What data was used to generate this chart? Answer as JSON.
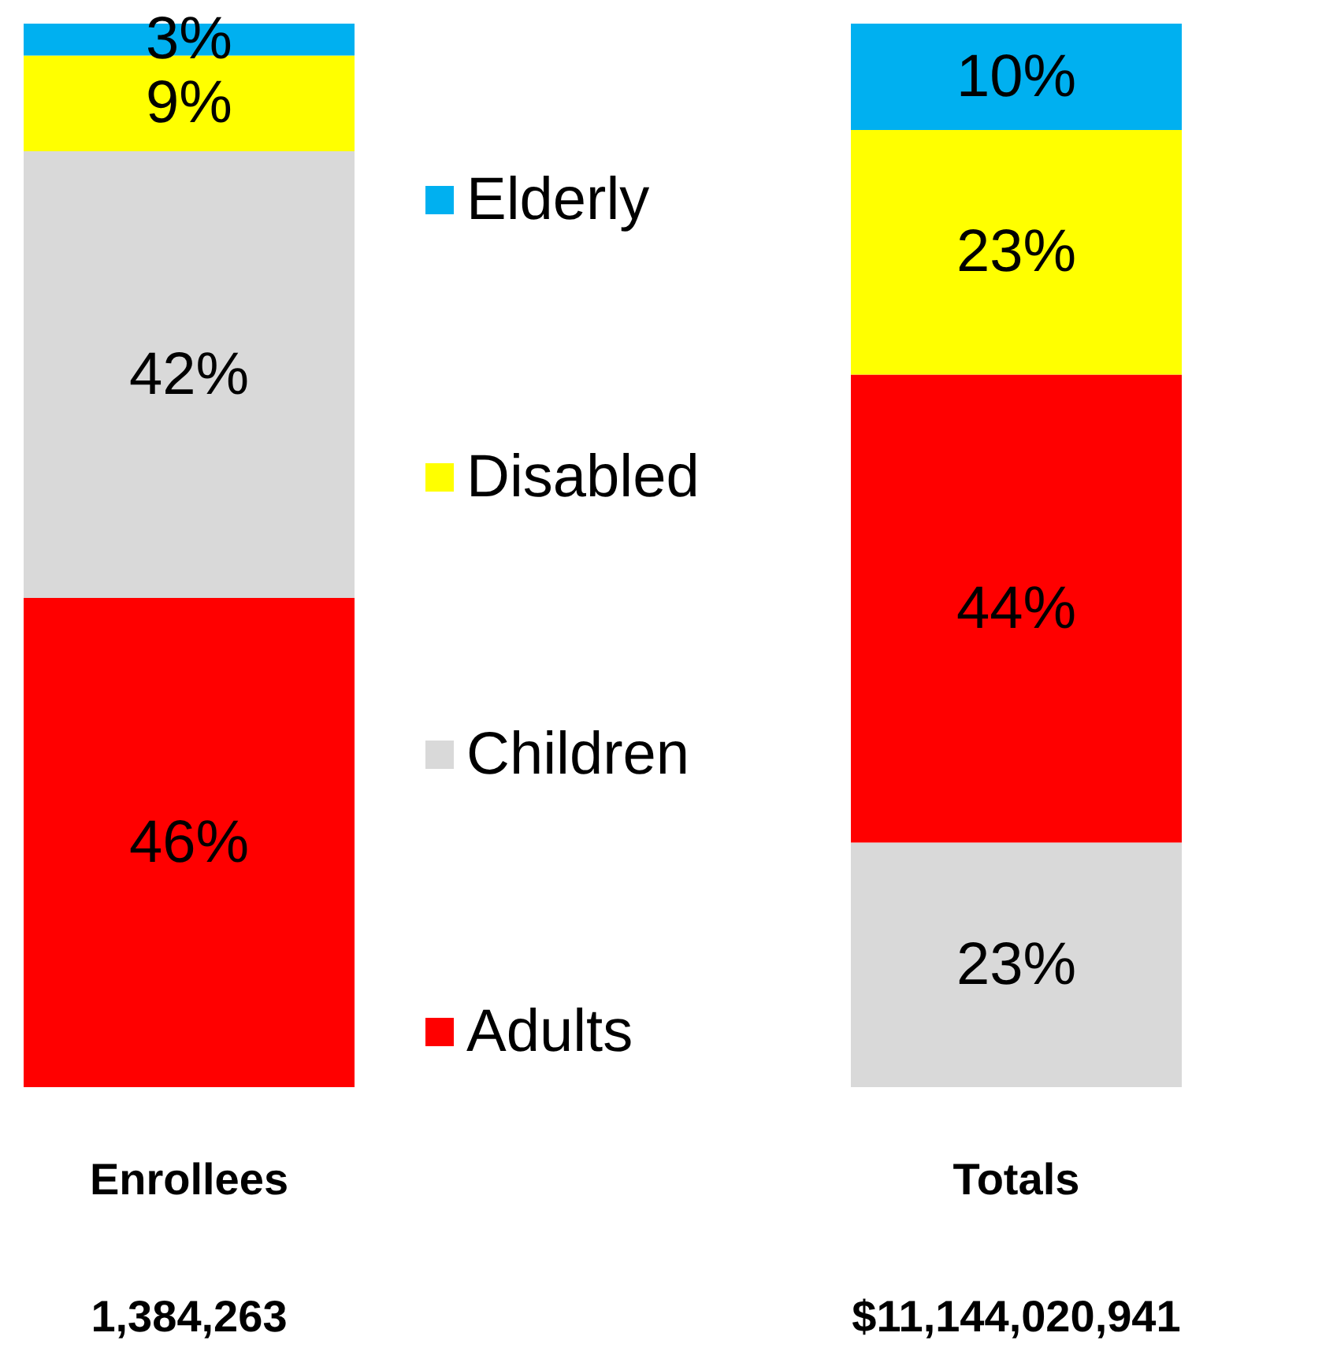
{
  "chart_data": [
    {
      "type": "bar",
      "stacked": true,
      "categories": [
        "Enrollees"
      ],
      "series": [
        {
          "name": "Adults",
          "color": "#ff0000",
          "values": [
            46
          ],
          "value_labels": [
            "46%"
          ]
        },
        {
          "name": "Children",
          "color": "#d9d9d9",
          "values": [
            42
          ],
          "value_labels": [
            "42%"
          ]
        },
        {
          "name": "Disabled",
          "color": "#ffff00",
          "values": [
            9
          ],
          "value_labels": [
            "9%"
          ]
        },
        {
          "name": "Elderly",
          "color": "#00b0f0",
          "values": [
            3
          ],
          "value_labels": [
            "3%"
          ]
        }
      ],
      "ylim": [
        0,
        100
      ],
      "tick_labels": "x",
      "legend": "right",
      "annotations": [
        "1,384,263"
      ]
    },
    {
      "type": "bar",
      "stacked": true,
      "categories": [
        "Totals"
      ],
      "series": [
        {
          "color": "#d9d9d9",
          "values": [
            23
          ],
          "value_labels": [
            "23%"
          ]
        },
        {
          "color": "#ff0000",
          "values": [
            44
          ],
          "value_labels": [
            "44%"
          ]
        },
        {
          "color": "#ffff00",
          "values": [
            23
          ],
          "value_labels": [
            "23%"
          ]
        },
        {
          "color": "#00b0f0",
          "values": [
            10
          ],
          "value_labels": [
            "10%"
          ]
        }
      ],
      "ylim": [
        0,
        100
      ],
      "tick_labels": "x",
      "annotations": [
        "$11,144,020,941"
      ]
    }
  ]
}
